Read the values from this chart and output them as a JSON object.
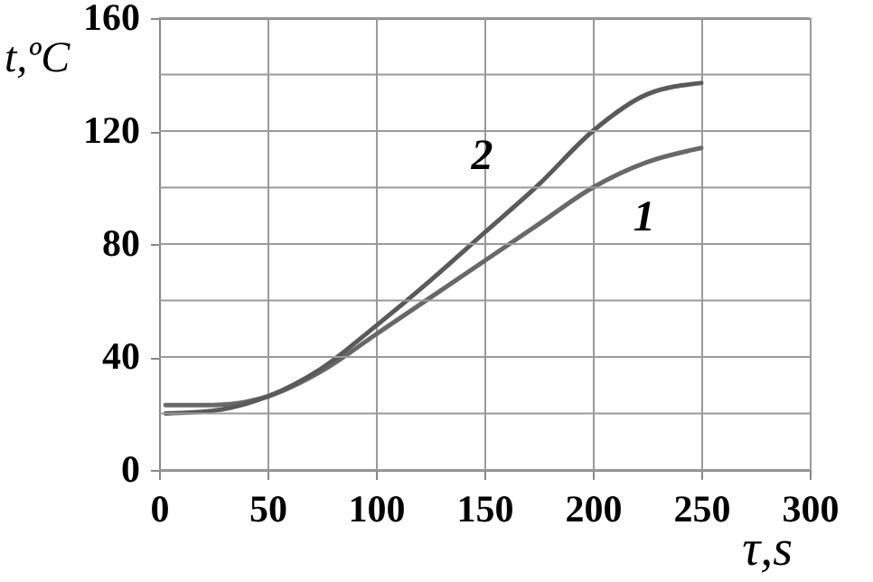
{
  "chart_data": {
    "type": "line",
    "xlabel": "τ,s",
    "ylabel": "t,ºC",
    "x": [
      3,
      25,
      50,
      75,
      100,
      125,
      150,
      175,
      200,
      225,
      250
    ],
    "series": [
      {
        "color": "#686868",
        "values": [
          23,
          23,
          26,
          35,
          48,
          61,
          74,
          87,
          100,
          109,
          114
        ]
      },
      {
        "color": "#5a5a5a",
        "values": [
          20,
          21,
          26,
          36,
          51,
          67,
          84,
          101,
          120,
          133,
          137
        ]
      }
    ],
    "annotations": [
      {
        "text": "2",
        "x": 179,
        "y": 106
      },
      {
        "text": "1",
        "x": 192,
        "y": 97
      }
    ],
    "xlim": [
      0,
      300
    ],
    "xticks": [
      0,
      50,
      100,
      150,
      200,
      250,
      300
    ],
    "ylim": [
      0,
      160
    ],
    "yticks": [
      0,
      {
        "value": 20,
        "label": null
      },
      40,
      {
        "value": 60,
        "label": null
      },
      80,
      {
        "value": 100,
        "label": null
      },
      120,
      {
        "value": 140,
        "label": null
      },
      160
    ],
    "grid": true,
    "marker": "none",
    "line_style": "solid"
  }
}
